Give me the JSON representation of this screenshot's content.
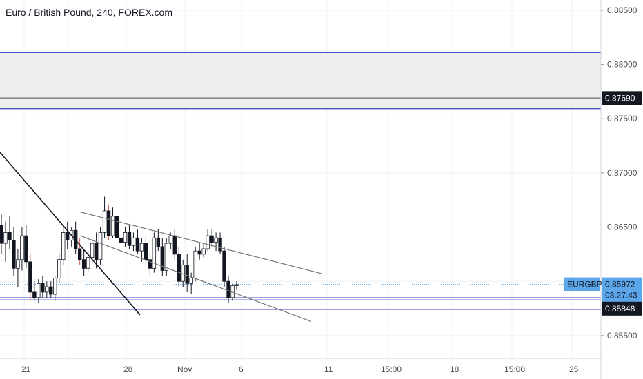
{
  "title": "Euro / British Pound, 240, FOREX.com",
  "symbol": "EURGBP",
  "countdown": "03:27:43",
  "colors": {
    "up": "#ffffff",
    "down": "#131722",
    "wick": "#131722",
    "wick_red": "#e05a5a",
    "level_line": "#3a3fbf",
    "zone_fill": "#eeeeee",
    "marker_dark": "#131722",
    "marker_blue": "#5ba7ea",
    "grid": "#eef0f3"
  },
  "chart_data": {
    "type": "candlestick",
    "price_axis": {
      "range": [
        0.8534,
        0.88595
      ],
      "tick_labels": [
        "0.88500",
        "0.88000",
        "0.87500",
        "0.87000",
        "0.86500",
        "0.86000",
        "0.85500"
      ]
    },
    "time_axis": {
      "tick_labels": [
        "21",
        "28",
        "Nov",
        "6",
        "11",
        "15:00",
        "18",
        "15:00",
        "25"
      ]
    },
    "price_markers": [
      {
        "label": "0.87690",
        "value": 0.8769,
        "style": "dark"
      },
      {
        "label": "EURGBP",
        "value": 0.85972,
        "style": "blue"
      },
      {
        "label": "0.85972",
        "value": 0.85972,
        "style": "blue"
      },
      {
        "label": "03:27:43",
        "value": 0.85872,
        "style": "blue"
      },
      {
        "label": "0.85848",
        "value": 0.85748,
        "style": "dark"
      }
    ],
    "horizontal_levels": [
      {
        "value": 0.8811,
        "color": "blue"
      },
      {
        "value": 0.8769,
        "color": "gray"
      },
      {
        "value": 0.87592,
        "color": "blue"
      },
      {
        "value": 0.85848,
        "color": "blue"
      },
      {
        "value": 0.85828,
        "color": "blue"
      },
      {
        "value": 0.85741,
        "color": "blue"
      }
    ],
    "shaded_zones": [
      {
        "from": 0.87592,
        "to": 0.8811
      }
    ],
    "trend_lines": [
      {
        "from": [
          0,
          0.8719
        ],
        "to": [
          203,
          0.8569
        ]
      },
      {
        "from": [
          116,
          0.8664
        ],
        "to": [
          467,
          0.8607
        ]
      },
      {
        "from": [
          116,
          0.8642
        ],
        "to": [
          451,
          0.8563
        ]
      }
    ],
    "candles": [
      [
        0.8652,
        0.8662,
        0.8625,
        0.8635
      ],
      [
        0.8635,
        0.8655,
        0.8618,
        0.8645
      ],
      [
        0.8645,
        0.866,
        0.863,
        0.8638
      ],
      [
        0.8638,
        0.865,
        0.8605,
        0.8612
      ],
      [
        0.8612,
        0.863,
        0.8595,
        0.862
      ],
      [
        0.862,
        0.865,
        0.861,
        0.8642
      ],
      [
        0.8642,
        0.8652,
        0.8612,
        0.8618
      ],
      [
        0.8618,
        0.8625,
        0.8582,
        0.859
      ],
      [
        0.859,
        0.86,
        0.8582,
        0.8585
      ],
      [
        0.8585,
        0.8602,
        0.858,
        0.8598
      ],
      [
        0.8598,
        0.8605,
        0.8585,
        0.859
      ],
      [
        0.859,
        0.86,
        0.8585,
        0.8595
      ],
      [
        0.8595,
        0.86,
        0.8585,
        0.8588
      ],
      [
        0.8588,
        0.8605,
        0.8582,
        0.8603
      ],
      [
        0.8603,
        0.8625,
        0.8598,
        0.862
      ],
      [
        0.862,
        0.865,
        0.8615,
        0.8645
      ],
      [
        0.8645,
        0.8655,
        0.863,
        0.8638
      ],
      [
        0.8638,
        0.865,
        0.8632,
        0.8647
      ],
      [
        0.8647,
        0.8655,
        0.8625,
        0.863
      ],
      [
        0.863,
        0.864,
        0.8615,
        0.862
      ],
      [
        0.862,
        0.863,
        0.8605,
        0.8612
      ],
      [
        0.8612,
        0.8628,
        0.8608,
        0.8622
      ],
      [
        0.8622,
        0.864,
        0.8615,
        0.8635
      ],
      [
        0.8635,
        0.8645,
        0.8612,
        0.862
      ],
      [
        0.862,
        0.865,
        0.8615,
        0.8645
      ],
      [
        0.8645,
        0.8678,
        0.864,
        0.8665
      ],
      [
        0.8665,
        0.867,
        0.8638,
        0.8642
      ],
      [
        0.8642,
        0.8668,
        0.864,
        0.866
      ],
      [
        0.866,
        0.8672,
        0.8635,
        0.864
      ],
      [
        0.864,
        0.8648,
        0.863,
        0.8636
      ],
      [
        0.8636,
        0.865,
        0.8632,
        0.8645
      ],
      [
        0.8645,
        0.8652,
        0.863,
        0.8633
      ],
      [
        0.8633,
        0.8645,
        0.8628,
        0.864
      ],
      [
        0.864,
        0.8648,
        0.8625,
        0.8628
      ],
      [
        0.8628,
        0.864,
        0.8618,
        0.8635
      ],
      [
        0.8635,
        0.8642,
        0.8615,
        0.862
      ],
      [
        0.862,
        0.8628,
        0.8605,
        0.8612
      ],
      [
        0.8612,
        0.8645,
        0.8608,
        0.864
      ],
      [
        0.864,
        0.8648,
        0.8628,
        0.8632
      ],
      [
        0.8632,
        0.864,
        0.8605,
        0.861
      ],
      [
        0.861,
        0.864,
        0.8605,
        0.8635
      ],
      [
        0.8635,
        0.8645,
        0.863,
        0.8642
      ],
      [
        0.8642,
        0.8648,
        0.862,
        0.8625
      ],
      [
        0.8625,
        0.8632,
        0.8595,
        0.86
      ],
      [
        0.86,
        0.862,
        0.8595,
        0.8615
      ],
      [
        0.8615,
        0.8625,
        0.859,
        0.8598
      ],
      [
        0.8598,
        0.8608,
        0.8588,
        0.8603
      ],
      [
        0.8603,
        0.8632,
        0.86,
        0.8628
      ],
      [
        0.8628,
        0.8635,
        0.862,
        0.8625
      ],
      [
        0.8625,
        0.8635,
        0.8622,
        0.863
      ],
      [
        0.863,
        0.8648,
        0.8628,
        0.8642
      ],
      [
        0.8642,
        0.8648,
        0.8632,
        0.8636
      ],
      [
        0.8636,
        0.8645,
        0.8628,
        0.864
      ],
      [
        0.864,
        0.8645,
        0.8625,
        0.8628
      ],
      [
        0.8628,
        0.8632,
        0.8595,
        0.86
      ],
      [
        0.86,
        0.8605,
        0.858,
        0.8585
      ],
      [
        0.8585,
        0.8598,
        0.8582,
        0.8596
      ],
      [
        0.8596,
        0.86,
        0.8592,
        0.8597
      ]
    ]
  }
}
